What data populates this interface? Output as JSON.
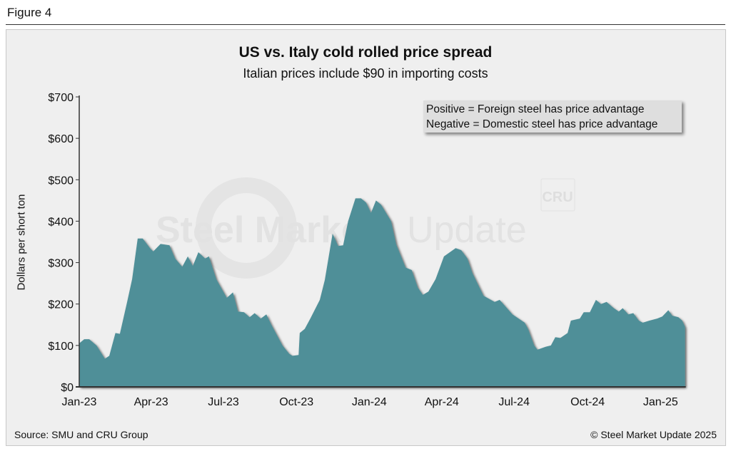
{
  "figure_label": "Figure 4",
  "footer": {
    "source": "Source: SMU and CRU Group",
    "copyright": "© Steel Market Update 2025"
  },
  "watermark": {
    "text": "Steel Market Update",
    "badge": "CRU"
  },
  "colors": {
    "area": "#4f8f98",
    "background": "#efefef"
  },
  "chart_data": {
    "type": "area",
    "title": "US vs. Italy cold rolled price spread",
    "subtitle": "Italian prices include $90 in importing costs",
    "xlabel": "",
    "ylabel": "Dollars per short ton",
    "ylim": [
      0,
      700
    ],
    "xlim_weeks": [
      0,
      108.8
    ],
    "grid": false,
    "legend_placement": "top-right",
    "legend": [
      "Positive = Foreign steel has price advantage",
      "Negative = Domestic steel has price advantage"
    ],
    "y_ticks": [
      {
        "value": 0,
        "label": "$0"
      },
      {
        "value": 100,
        "label": "$100"
      },
      {
        "value": 200,
        "label": "$200"
      },
      {
        "value": 300,
        "label": "$300"
      },
      {
        "value": 400,
        "label": "$400"
      },
      {
        "value": 500,
        "label": "$500"
      },
      {
        "value": 600,
        "label": "$600"
      },
      {
        "value": 700,
        "label": "$700"
      }
    ],
    "x_ticks": [
      {
        "week": 0,
        "label": "Jan-23"
      },
      {
        "week": 12.9,
        "label": "Apr-23"
      },
      {
        "week": 25.9,
        "label": "Jul-23"
      },
      {
        "week": 39,
        "label": "Oct-23"
      },
      {
        "week": 52.1,
        "label": "Jan-24"
      },
      {
        "week": 65.1,
        "label": "Apr-24"
      },
      {
        "week": 78.1,
        "label": "Jul-24"
      },
      {
        "week": 91.3,
        "label": "Oct-24"
      },
      {
        "week": 104.4,
        "label": "Jan-25"
      }
    ],
    "x_unit": "weeks since Jan-23",
    "points": [
      [
        0,
        105
      ],
      [
        0.9,
        115
      ],
      [
        1.8,
        115
      ],
      [
        3.1,
        100
      ],
      [
        4.6,
        68
      ],
      [
        5.4,
        75
      ],
      [
        6.5,
        130
      ],
      [
        7.3,
        128
      ],
      [
        8.6,
        205
      ],
      [
        9.5,
        260
      ],
      [
        10.5,
        358
      ],
      [
        11.4,
        358
      ],
      [
        12.7,
        335
      ],
      [
        13.3,
        327
      ],
      [
        14.6,
        345
      ],
      [
        16.2,
        342
      ],
      [
        17.2,
        310
      ],
      [
        18.5,
        290
      ],
      [
        19.5,
        315
      ],
      [
        20.4,
        292
      ],
      [
        21.4,
        325
      ],
      [
        22.6,
        310
      ],
      [
        23.3,
        315
      ],
      [
        24.6,
        260
      ],
      [
        26.5,
        215
      ],
      [
        27.6,
        228
      ],
      [
        28.5,
        182
      ],
      [
        29.6,
        180
      ],
      [
        30.6,
        168
      ],
      [
        31.5,
        178
      ],
      [
        32.6,
        165
      ],
      [
        33.6,
        175
      ],
      [
        34.5,
        150
      ],
      [
        36.5,
        100
      ],
      [
        37.7,
        80
      ],
      [
        38.3,
        75
      ],
      [
        39.4,
        77
      ],
      [
        39.6,
        130
      ],
      [
        40.5,
        140
      ],
      [
        41.5,
        165
      ],
      [
        43.2,
        210
      ],
      [
        44.1,
        258
      ],
      [
        45.5,
        370
      ],
      [
        46.5,
        340
      ],
      [
        47.4,
        342
      ],
      [
        48.3,
        400
      ],
      [
        49.6,
        455
      ],
      [
        50.6,
        455
      ],
      [
        51.5,
        445
      ],
      [
        52.4,
        420
      ],
      [
        53.3,
        450
      ],
      [
        54.2,
        440
      ],
      [
        56,
        400
      ],
      [
        56.9,
        345
      ],
      [
        58.6,
        288
      ],
      [
        59.7,
        282
      ],
      [
        60.8,
        240
      ],
      [
        61.7,
        222
      ],
      [
        62.7,
        230
      ],
      [
        64,
        260
      ],
      [
        65.5,
        315
      ],
      [
        67.6,
        335
      ],
      [
        68.6,
        330
      ],
      [
        69.7,
        310
      ],
      [
        70.6,
        275
      ],
      [
        72.6,
        220
      ],
      [
        74.6,
        205
      ],
      [
        75.5,
        210
      ],
      [
        77.8,
        175
      ],
      [
        80,
        155
      ],
      [
        80.6,
        140
      ],
      [
        81.7,
        100
      ],
      [
        82.3,
        90
      ],
      [
        83.8,
        97
      ],
      [
        84.7,
        100
      ],
      [
        85.5,
        120
      ],
      [
        86.4,
        118
      ],
      [
        87.7,
        130
      ],
      [
        88.3,
        160
      ],
      [
        89.9,
        165
      ],
      [
        90.6,
        180
      ],
      [
        91.7,
        180
      ],
      [
        92.8,
        210
      ],
      [
        93.7,
        200
      ],
      [
        94.7,
        205
      ],
      [
        96,
        190
      ],
      [
        96.9,
        182
      ],
      [
        97.6,
        190
      ],
      [
        98.6,
        175
      ],
      [
        99.5,
        178
      ],
      [
        100.5,
        160
      ],
      [
        101.2,
        155
      ],
      [
        102.4,
        160
      ],
      [
        103.8,
        165
      ],
      [
        104.7,
        170
      ],
      [
        105.8,
        185
      ],
      [
        106.5,
        172
      ],
      [
        107.6,
        168
      ],
      [
        108.3,
        160
      ],
      [
        108.8,
        145
      ]
    ]
  }
}
